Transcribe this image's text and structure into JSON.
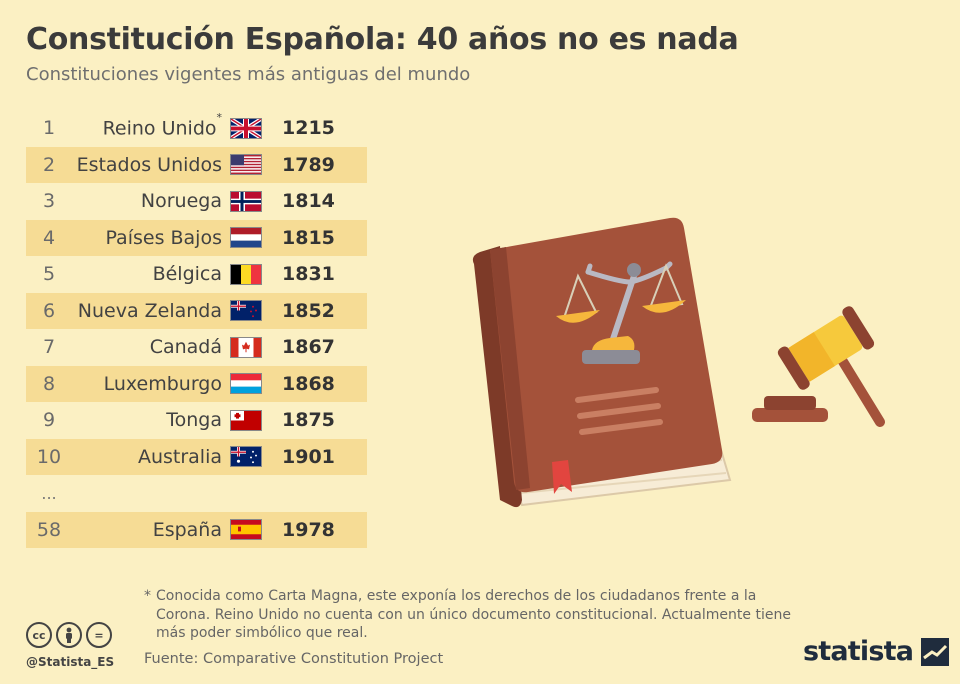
{
  "title": "Constitución Española: 40 años no es nada",
  "subtitle": "Constituciones vigentes más antiguas del mundo",
  "chart_data": {
    "type": "table",
    "columns": [
      "rank",
      "country",
      "year"
    ],
    "rows": [
      {
        "rank": "1",
        "country": "Reino Unido",
        "note": "*",
        "flag": "uk-flag-icon",
        "year": "1215"
      },
      {
        "rank": "2",
        "country": "Estados Unidos",
        "note": "",
        "flag": "usa-flag-icon",
        "year": "1789"
      },
      {
        "rank": "3",
        "country": "Noruega",
        "note": "",
        "flag": "norway-flag-icon",
        "year": "1814"
      },
      {
        "rank": "4",
        "country": "Países Bajos",
        "note": "",
        "flag": "netherlands-flag-icon",
        "year": "1815"
      },
      {
        "rank": "5",
        "country": "Bélgica",
        "note": "",
        "flag": "belgium-flag-icon",
        "year": "1831"
      },
      {
        "rank": "6",
        "country": "Nueva Zelanda",
        "note": "",
        "flag": "new-zealand-flag-icon",
        "year": "1852"
      },
      {
        "rank": "7",
        "country": "Canadá",
        "note": "",
        "flag": "canada-flag-icon",
        "year": "1867"
      },
      {
        "rank": "8",
        "country": "Luxemburgo",
        "note": "",
        "flag": "luxembourg-flag-icon",
        "year": "1868"
      },
      {
        "rank": "9",
        "country": "Tonga",
        "note": "",
        "flag": "tonga-flag-icon",
        "year": "1875"
      },
      {
        "rank": "10",
        "country": "Australia",
        "note": "",
        "flag": "australia-flag-icon",
        "year": "1901"
      },
      {
        "rank": "...",
        "country": "",
        "note": "",
        "flag": "",
        "year": ""
      },
      {
        "rank": "58",
        "country": "España",
        "note": "",
        "flag": "spain-flag-icon",
        "year": "1978"
      }
    ]
  },
  "footnote": {
    "mark": "*",
    "text": "Conocida como Carta Magna, este exponía los derechos de los ciudadanos frente a la Corona. Reino Unido no cuenta con un único documento constitucional. Actualmente tiene más poder simbólico que real."
  },
  "source": "Fuente: Comparative Constitution Project",
  "license_icons": [
    "cc",
    "by",
    "="
  ],
  "handle": "@Statista_ES",
  "brand": "statista",
  "colors": {
    "background": "#fbf0c3",
    "row_shade": "#f6dc95",
    "book": "#a4523a",
    "gavel_head": "#f6c93c"
  }
}
